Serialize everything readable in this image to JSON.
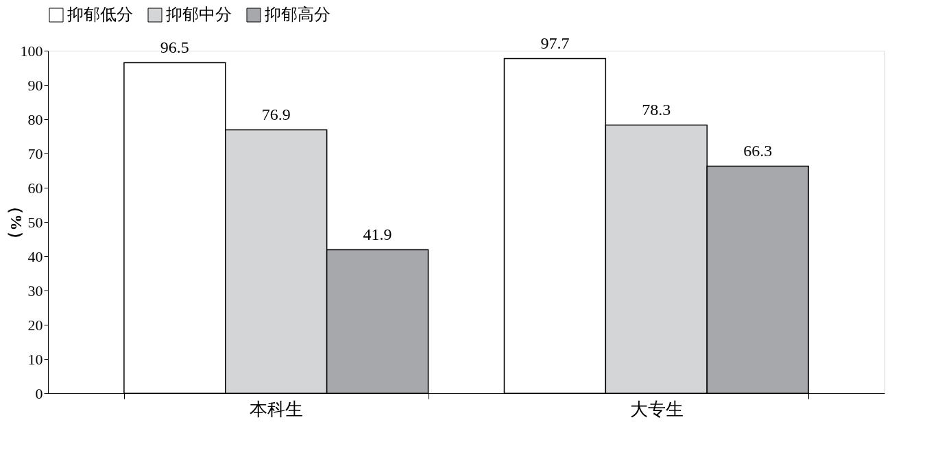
{
  "chart_data": {
    "type": "bar",
    "ylabel": "（%）",
    "categories": [
      "本科生",
      "大专生"
    ],
    "series": [
      {
        "name": "抑郁低分",
        "color": "#ffffff",
        "values": [
          96.5,
          97.7
        ]
      },
      {
        "name": "抑郁中分",
        "color": "#d4d5d7",
        "values": [
          76.9,
          78.3
        ]
      },
      {
        "name": "抑郁高分",
        "color": "#a7a8ac",
        "values": [
          41.9,
          66.3
        ]
      }
    ],
    "ylim": [
      0,
      100
    ],
    "yticks": [
      0,
      10,
      20,
      30,
      40,
      50,
      60,
      70,
      80,
      90,
      100
    ],
    "data_labels": true,
    "legend": "top",
    "grid": false
  }
}
